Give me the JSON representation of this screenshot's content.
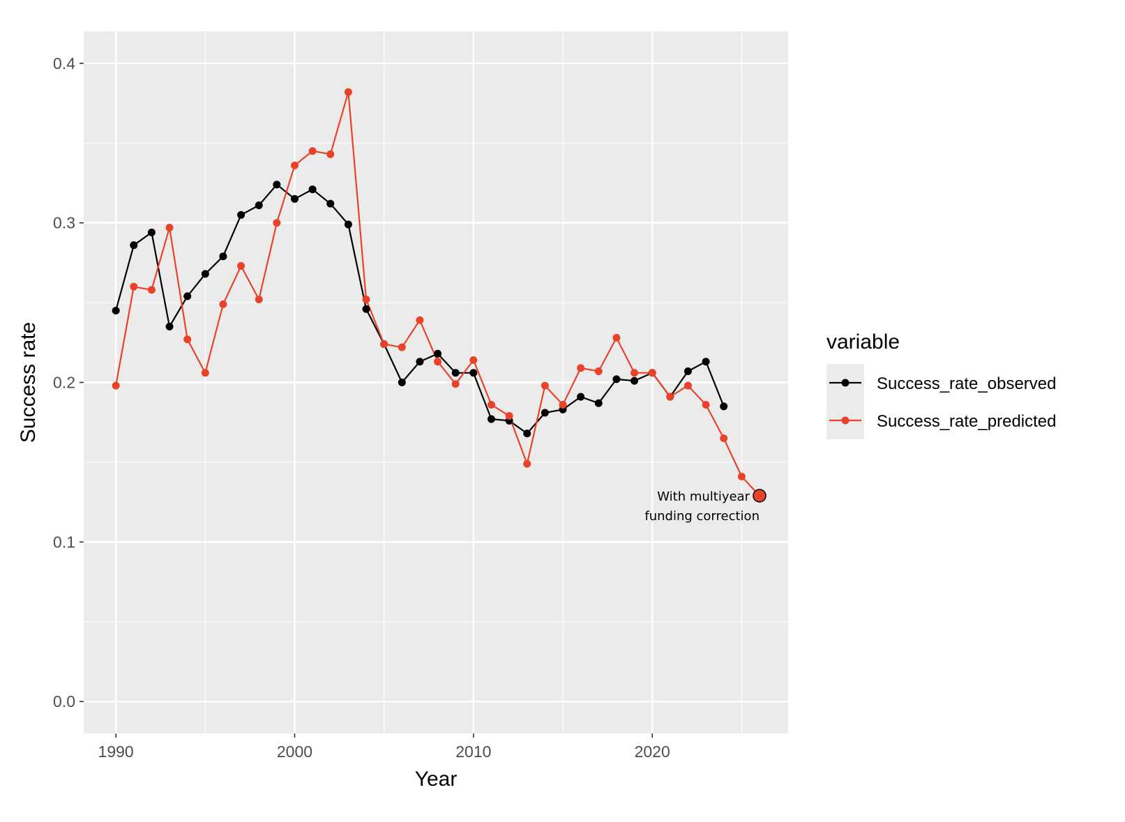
{
  "chart_data": {
    "type": "line",
    "title": "",
    "xlabel": "Year",
    "ylabel": "Success rate",
    "xlim": [
      1988.2,
      2027.6
    ],
    "ylim": [
      -0.02,
      0.42
    ],
    "x_ticks": [
      1990,
      2000,
      2010,
      2020
    ],
    "y_ticks": [
      0.0,
      0.1,
      0.2,
      0.3,
      0.4
    ],
    "x_tick_labels": [
      "1990",
      "2000",
      "2010",
      "2020"
    ],
    "y_tick_labels": [
      "0.0",
      "0.1",
      "0.2",
      "0.3",
      "0.4"
    ],
    "grid": true,
    "panel_background": "#ebebeb",
    "legend": {
      "title": "variable",
      "position": "right"
    },
    "series": [
      {
        "name": "Success_rate_observed",
        "color": "#000000",
        "x": [
          1990,
          1991,
          1992,
          1993,
          1994,
          1995,
          1996,
          1997,
          1998,
          1999,
          2000,
          2001,
          2002,
          2003,
          2004,
          2005,
          2006,
          2007,
          2008,
          2009,
          2010,
          2011,
          2012,
          2013,
          2014,
          2015,
          2016,
          2017,
          2018,
          2019,
          2020,
          2021,
          2022,
          2023,
          2024
        ],
        "y": [
          0.245,
          0.286,
          0.294,
          0.235,
          0.254,
          0.268,
          0.279,
          0.305,
          0.311,
          0.324,
          0.315,
          0.321,
          0.312,
          0.299,
          0.246,
          0.224,
          0.2,
          0.213,
          0.218,
          0.206,
          0.206,
          0.177,
          0.176,
          0.168,
          0.181,
          0.183,
          0.191,
          0.187,
          0.202,
          0.201,
          0.206,
          0.191,
          0.207,
          0.213,
          0.185
        ]
      },
      {
        "name": "Success_rate_predicted",
        "color": "#e8432a",
        "x": [
          1990,
          1991,
          1992,
          1993,
          1994,
          1995,
          1996,
          1997,
          1998,
          1999,
          2000,
          2001,
          2002,
          2003,
          2004,
          2005,
          2006,
          2007,
          2008,
          2009,
          2010,
          2011,
          2012,
          2013,
          2014,
          2015,
          2016,
          2017,
          2018,
          2019,
          2020,
          2021,
          2022,
          2023,
          2024,
          2025,
          2026
        ],
        "y": [
          0.198,
          0.26,
          0.258,
          0.297,
          0.227,
          0.206,
          0.249,
          0.273,
          0.252,
          0.3,
          0.336,
          0.345,
          0.343,
          0.382,
          0.252,
          0.224,
          0.222,
          0.239,
          0.213,
          0.199,
          0.214,
          0.186,
          0.179,
          0.149,
          0.198,
          0.186,
          0.209,
          0.207,
          0.228,
          0.206,
          0.206,
          0.191,
          0.198,
          0.186,
          0.165,
          0.141,
          0.129
        ]
      }
    ],
    "annotations": [
      {
        "lines": [
          "With multiyear",
          "funding correction"
        ],
        "x": 2026,
        "y": 0.129
      }
    ]
  }
}
